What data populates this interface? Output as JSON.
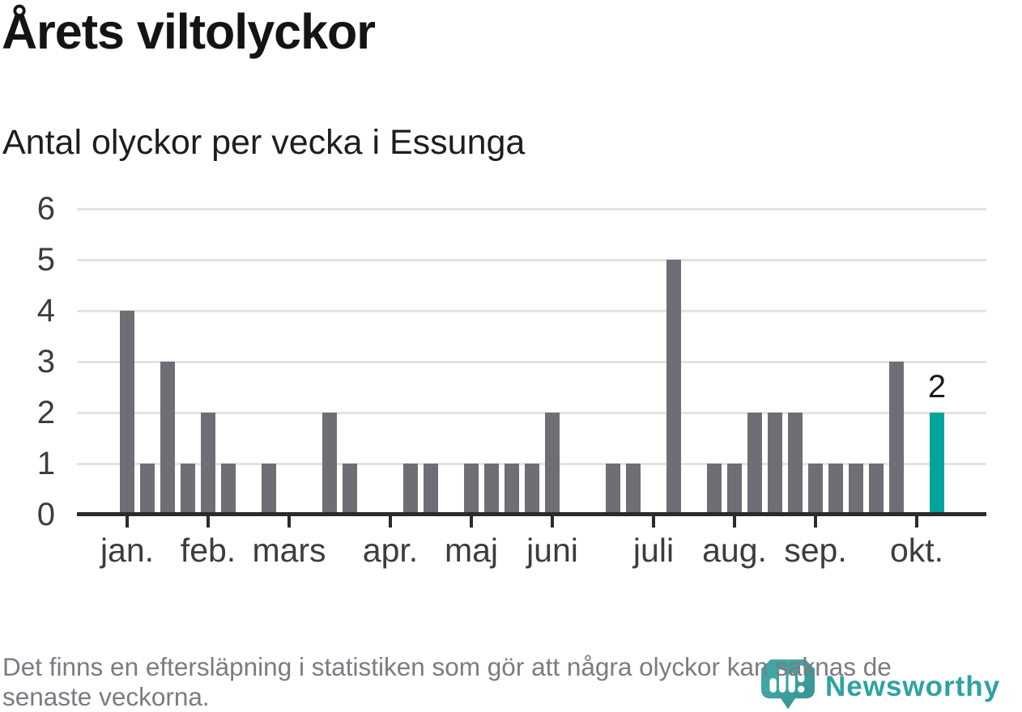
{
  "title": "Årets viltolyckor",
  "subtitle": "Antal olyckor per vecka i Essunga",
  "footer": {
    "lines": [
      "Det finns en eftersläpning i statistiken som gör att några olyckor kan saknas de",
      "senaste veckorna."
    ]
  },
  "logo": {
    "name": "Newsworthy"
  },
  "chart_data": {
    "type": "bar",
    "title": "Årets viltolyckor",
    "subtitle": "Antal olyckor per vecka i Essunga",
    "x_unit": "week",
    "values": [
      4,
      1,
      3,
      1,
      2,
      1,
      0,
      1,
      0,
      0,
      2,
      1,
      0,
      0,
      1,
      1,
      0,
      1,
      1,
      1,
      1,
      2,
      0,
      0,
      1,
      1,
      0,
      5,
      0,
      1,
      1,
      2,
      2,
      2,
      1,
      1,
      1,
      1,
      3,
      0,
      2
    ],
    "highlight_index": 40,
    "highlight_label": "2",
    "y_ticks": [
      0,
      1,
      2,
      3,
      4,
      5,
      6
    ],
    "ylim": [
      0,
      6
    ],
    "grid": "on",
    "legend": "none",
    "month_ticks": [
      {
        "label": "jan.",
        "week": 0
      },
      {
        "label": "feb.",
        "week": 4
      },
      {
        "label": "mars",
        "week": 8
      },
      {
        "label": "apr.",
        "week": 13
      },
      {
        "label": "maj",
        "week": 17
      },
      {
        "label": "juni",
        "week": 21
      },
      {
        "label": "juli",
        "week": 26
      },
      {
        "label": "aug.",
        "week": 30
      },
      {
        "label": "sep.",
        "week": 34
      },
      {
        "label": "okt.",
        "week": 39
      }
    ],
    "colors": {
      "bar": "#6e6e74",
      "highlight": "#00a49c",
      "grid": "#e3e3e3",
      "axis": "#2b2b2e",
      "tick_label": "#3c3c40",
      "logo_teal": "#3ba0a0"
    }
  }
}
